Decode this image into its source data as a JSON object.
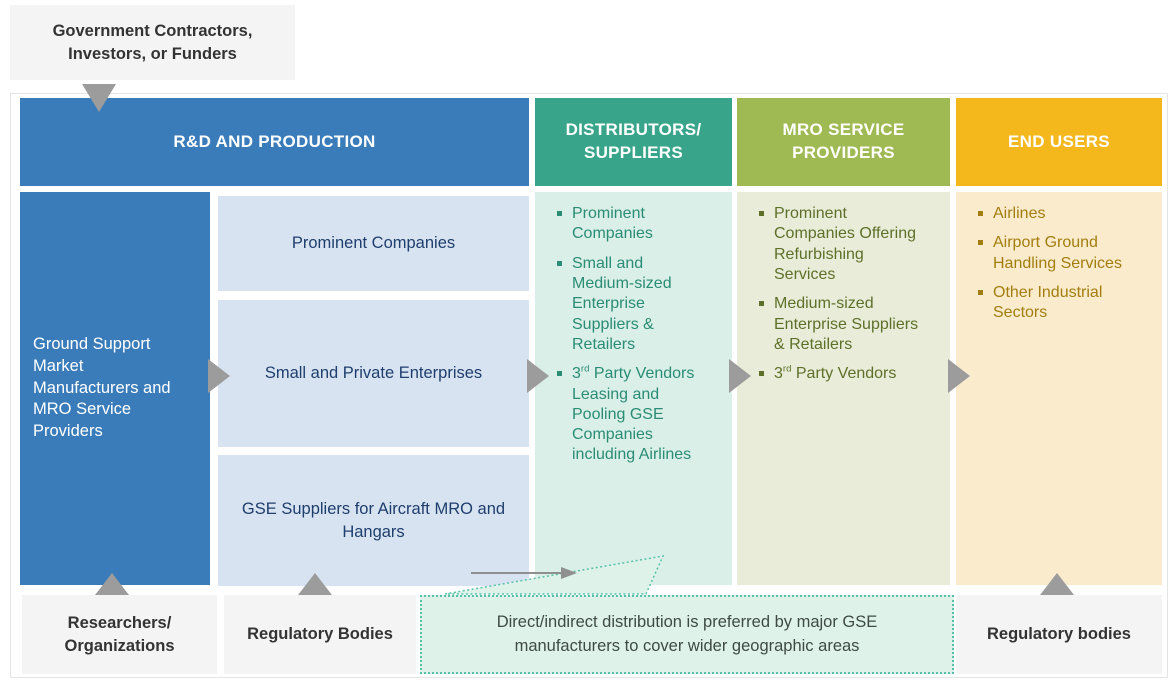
{
  "external": {
    "top_box_label": "Government Contractors,\nInvestors, or Funders"
  },
  "chain": {
    "columns": [
      {
        "key": "rnd",
        "header": "R&D AND PRODUCTION"
      },
      {
        "key": "distributors",
        "header": "DISTRIBUTORS/\nSUPPLIERS",
        "items": [
          "Prominent\nCompanies",
          "Small and\nMedium-sized\nEnterprise\nSuppliers &\nRetailers",
          "3^{rd} Party Vendors\nLeasing and\nPooling GSE\nCompanies\nincluding Airlines"
        ]
      },
      {
        "key": "mro",
        "header": "MRO SERVICE\nPROVIDERS",
        "items": [
          "Prominent\nCompanies Offering\nRefurbishing\nServices",
          "Medium-sized\nEnterprise Suppliers\n& Retailers",
          "3^{rd} Party Vendors"
        ]
      },
      {
        "key": "end_users",
        "header": "END USERS",
        "items": [
          "Airlines",
          "Airport Ground\nHandling Services",
          "Other Industrial\nSectors"
        ]
      }
    ],
    "rnd": {
      "left_box": "Ground Support\nMarket\nManufacturers and\nMRO Service\nProviders",
      "sub_boxes": [
        "Prominent Companies",
        "Small and Private Enterprises",
        "GSE Suppliers for Aircraft MRO and\nHangars"
      ]
    }
  },
  "bottom": {
    "researchers": "Researchers/\nOrganizations",
    "regulatory_left": "Regulatory Bodies",
    "regulatory_right": "Regulatory bodies",
    "callout": "Direct/indirect distribution is preferred by major GSE\nmanufacturers to cover wider geographic areas"
  },
  "colors": {
    "rnd_blue": "#3a7cba",
    "rnd_light_blue": "#d8e3f1",
    "rnd_text_navy": "#1e3e6d",
    "distributors_teal": "#38a58a",
    "distributors_body": "#d9efe7",
    "distributors_text": "#2a8c75",
    "mro_olive": "#9fba52",
    "mro_body": "#e9ecd8",
    "mro_text": "#5d7029",
    "end_users_yellow": "#f4b81d",
    "end_users_body": "#f9ebcc",
    "end_users_text": "#a37e0e",
    "gray_box": "#f4f4f4",
    "arrow_gray": "#9c9c9c",
    "callout_bg": "#def2ea",
    "callout_border": "#57c1a8"
  }
}
